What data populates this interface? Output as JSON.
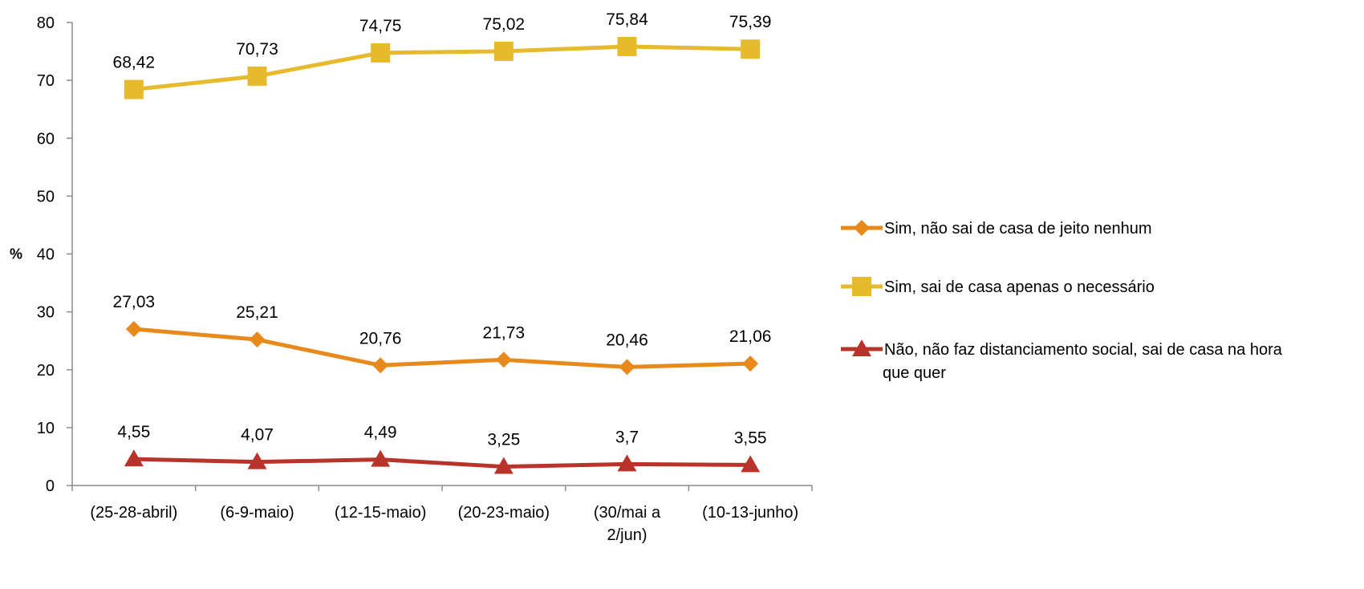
{
  "chart_data": {
    "type": "line",
    "categories": [
      "(25-28-abril)",
      "(6-9-maio)",
      "(12-15-maio)",
      "(20-23-maio)",
      "(30/mai a 2/jun)",
      "(10-13-junho)"
    ],
    "ylabel": "%",
    "ylim": [
      0,
      80
    ],
    "yticks": [
      0,
      10,
      20,
      30,
      40,
      50,
      60,
      70,
      80
    ],
    "grid": false,
    "legend_position": "right",
    "series": [
      {
        "name": "Sim, não sai de casa de jeito nenhum",
        "values": [
          27.03,
          25.21,
          20.76,
          21.73,
          20.46,
          21.06
        ],
        "labels": [
          "27,03",
          "25,21",
          "20,76",
          "21,73",
          "20,46",
          "21,06"
        ],
        "color": "#E8891C",
        "marker": "diamond"
      },
      {
        "name": "Sim, sai de casa apenas o necessário",
        "values": [
          68.42,
          70.73,
          74.75,
          75.02,
          75.84,
          75.39
        ],
        "labels": [
          "68,42",
          "70,73",
          "74,75",
          "75,02",
          "75,84",
          "75,39"
        ],
        "color": "#E6BA2C",
        "marker": "square"
      },
      {
        "name": "Não, não faz distanciamento social, sai de casa na hora que quer",
        "values": [
          4.55,
          4.07,
          4.49,
          3.25,
          3.7,
          3.55
        ],
        "labels": [
          "4,55",
          "4,07",
          "4,49",
          "3,25",
          "3,7",
          "3,55"
        ],
        "color": "#B8342A",
        "marker": "triangle"
      }
    ]
  }
}
